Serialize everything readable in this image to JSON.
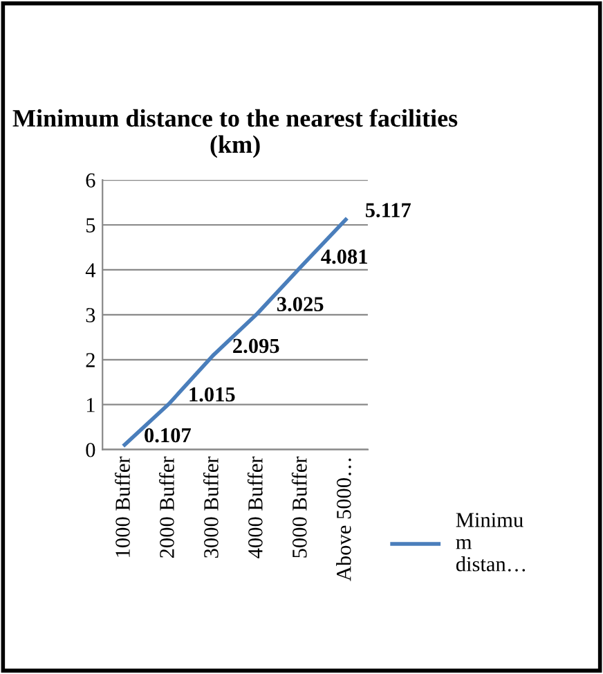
{
  "chart_data": {
    "type": "line",
    "title": "Minimum distance to the nearest facilities (km)",
    "categories": [
      "1000 Buffer",
      "2000 Buffer",
      "3000 Buffer",
      "4000 Buffer",
      "5000 Buffer",
      "Above 5000…"
    ],
    "series": [
      {
        "name": "Minimu\nm\ndistan…",
        "color": "#4a7ebb",
        "values": [
          0.107,
          1.015,
          2.095,
          3.025,
          4.081,
          5.117
        ]
      }
    ],
    "ylim": [
      0,
      6
    ],
    "yticks": [
      0,
      1,
      2,
      3,
      4,
      5,
      6
    ],
    "grid": "y",
    "legend": "right",
    "data_labels": true,
    "marker": "none",
    "line_style": "solid"
  }
}
